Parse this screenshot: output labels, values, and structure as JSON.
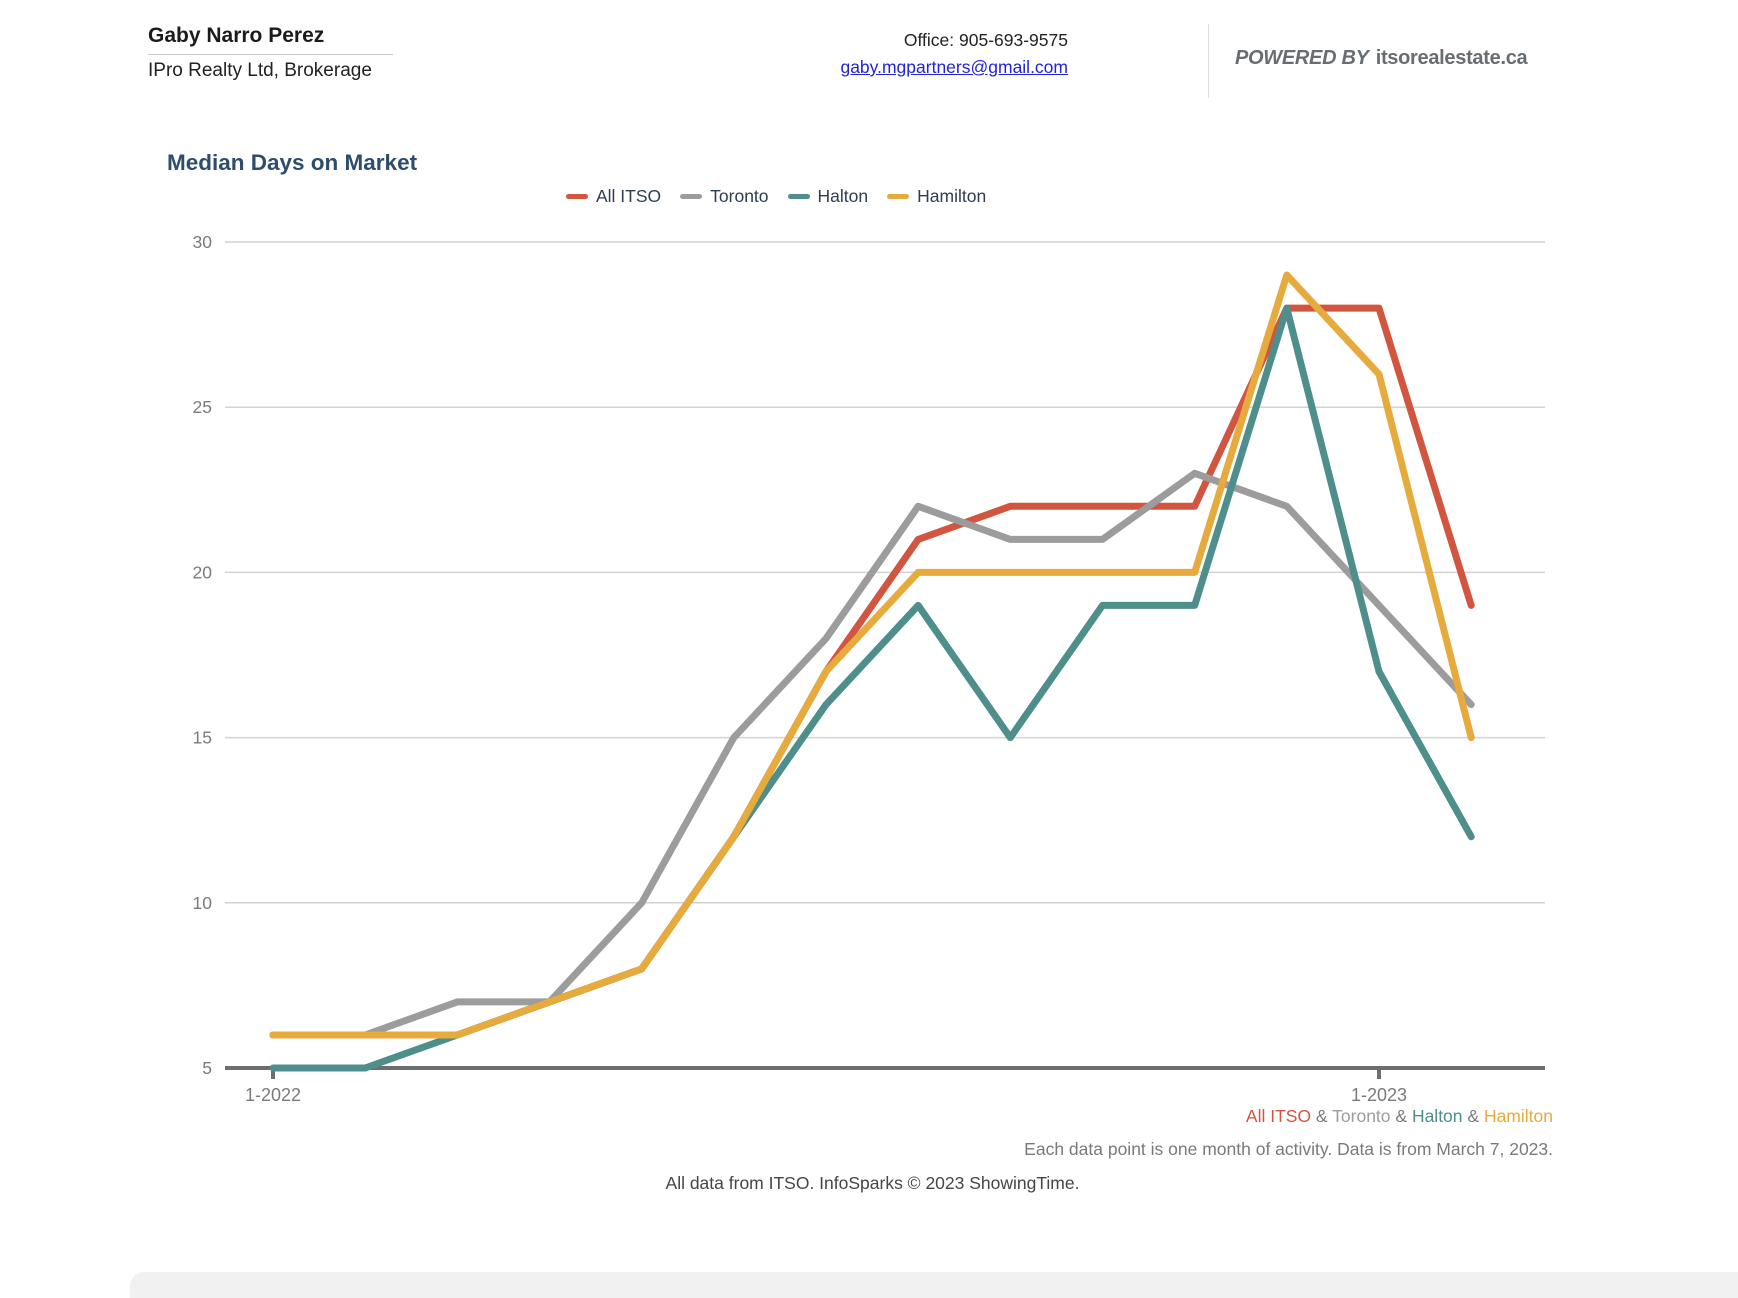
{
  "header": {
    "agent_name": "Gaby Narro Perez",
    "brokerage": "IPro Realty Ltd, Brokerage",
    "office_phone": "Office: 905-693-9575",
    "email": "gaby.mgpartners@gmail.com",
    "powered_by_prefix": "POWERED BY",
    "powered_by_brand": "itsorealestate.ca"
  },
  "chart_data": {
    "type": "line",
    "title": "Median Days on Market",
    "xlabel": "",
    "ylabel": "",
    "ylim": [
      5,
      30
    ],
    "yticks": [
      30,
      25,
      20,
      15,
      10,
      5
    ],
    "grid": true,
    "legend_position": "top-center",
    "months_count": 14,
    "x_ticks": [
      {
        "label": "1-2022",
        "month_index": 0
      },
      {
        "label": "1-2023",
        "month_index": 12
      }
    ],
    "series": [
      {
        "name": "All ITSO",
        "color": "#d25540",
        "values": [
          6,
          6,
          6,
          7,
          8,
          12,
          17,
          21,
          22,
          22,
          22,
          28,
          28,
          19
        ]
      },
      {
        "name": "Toronto",
        "color": "#9c9c9c",
        "values": [
          6,
          6,
          7,
          7,
          10,
          15,
          18,
          22,
          21,
          21,
          23,
          22,
          19,
          16
        ]
      },
      {
        "name": "Halton",
        "color": "#4e8f8c",
        "values": [
          5,
          5,
          6,
          7,
          8,
          12,
          16,
          19,
          15,
          19,
          19,
          28,
          17,
          12
        ]
      },
      {
        "name": "Hamilton",
        "color": "#e7aa3c",
        "values": [
          6,
          6,
          6,
          7,
          8,
          12,
          17,
          20,
          20,
          20,
          20,
          29,
          26,
          15
        ]
      }
    ],
    "axis_color": "#6e6e6e",
    "gridline_color": "#d2d2d2",
    "tick_label_color": "#7b7b7b"
  },
  "footer": {
    "separator": "&",
    "note": "Each data point is one month of activity. Data is from March 7, 2023.",
    "attribution": "All data from ITSO. InfoSparks © 2023 ShowingTime."
  }
}
